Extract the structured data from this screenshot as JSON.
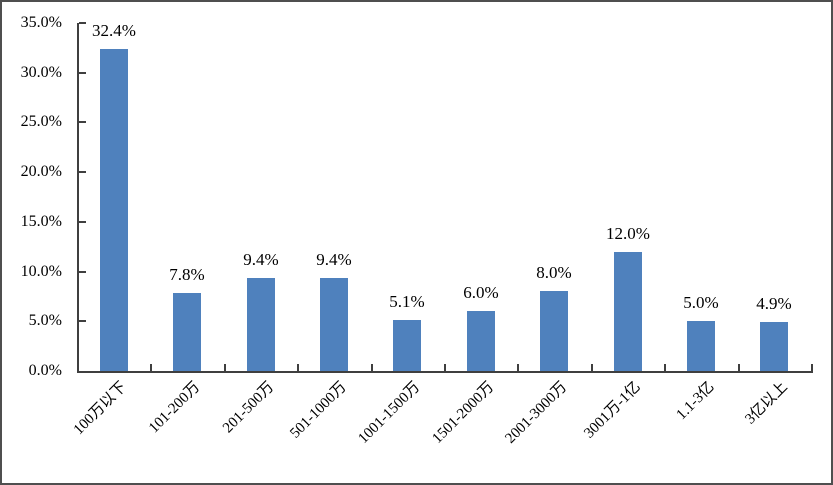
{
  "chart_data": {
    "type": "bar",
    "title": "",
    "xlabel": "",
    "ylabel": "",
    "categories": [
      "100万以下",
      "101-200万",
      "201-500万",
      "501-1000万",
      "1001-1500万",
      "1501-2000万",
      "2001-3000万",
      "3001万-1亿",
      "1.1-3亿",
      "3亿以上"
    ],
    "values": [
      32.4,
      7.8,
      9.4,
      9.4,
      5.1,
      6.0,
      8.0,
      12.0,
      5.0,
      4.9
    ],
    "data_labels": [
      "32.4%",
      "7.8%",
      "9.4%",
      "9.4%",
      "5.1%",
      "6.0%",
      "8.0%",
      "12.0%",
      "5.0%",
      "4.9%"
    ],
    "y_tick_labels": [
      "0.0%",
      "5.0%",
      "10.0%",
      "15.0%",
      "20.0%",
      "25.0%",
      "30.0%",
      "35.0%"
    ],
    "y_tick_values": [
      0,
      5,
      10,
      15,
      20,
      25,
      30,
      35
    ],
    "ylim": [
      0,
      35
    ],
    "grid": false,
    "legend_position": "none",
    "x_label_rotation_deg": 45,
    "colors": {
      "bar_fill": "#4f81bd",
      "axis": "#3f3f3f",
      "text": "#000000",
      "frame_border": "#4f4f4f",
      "background": "#ffffff"
    }
  }
}
